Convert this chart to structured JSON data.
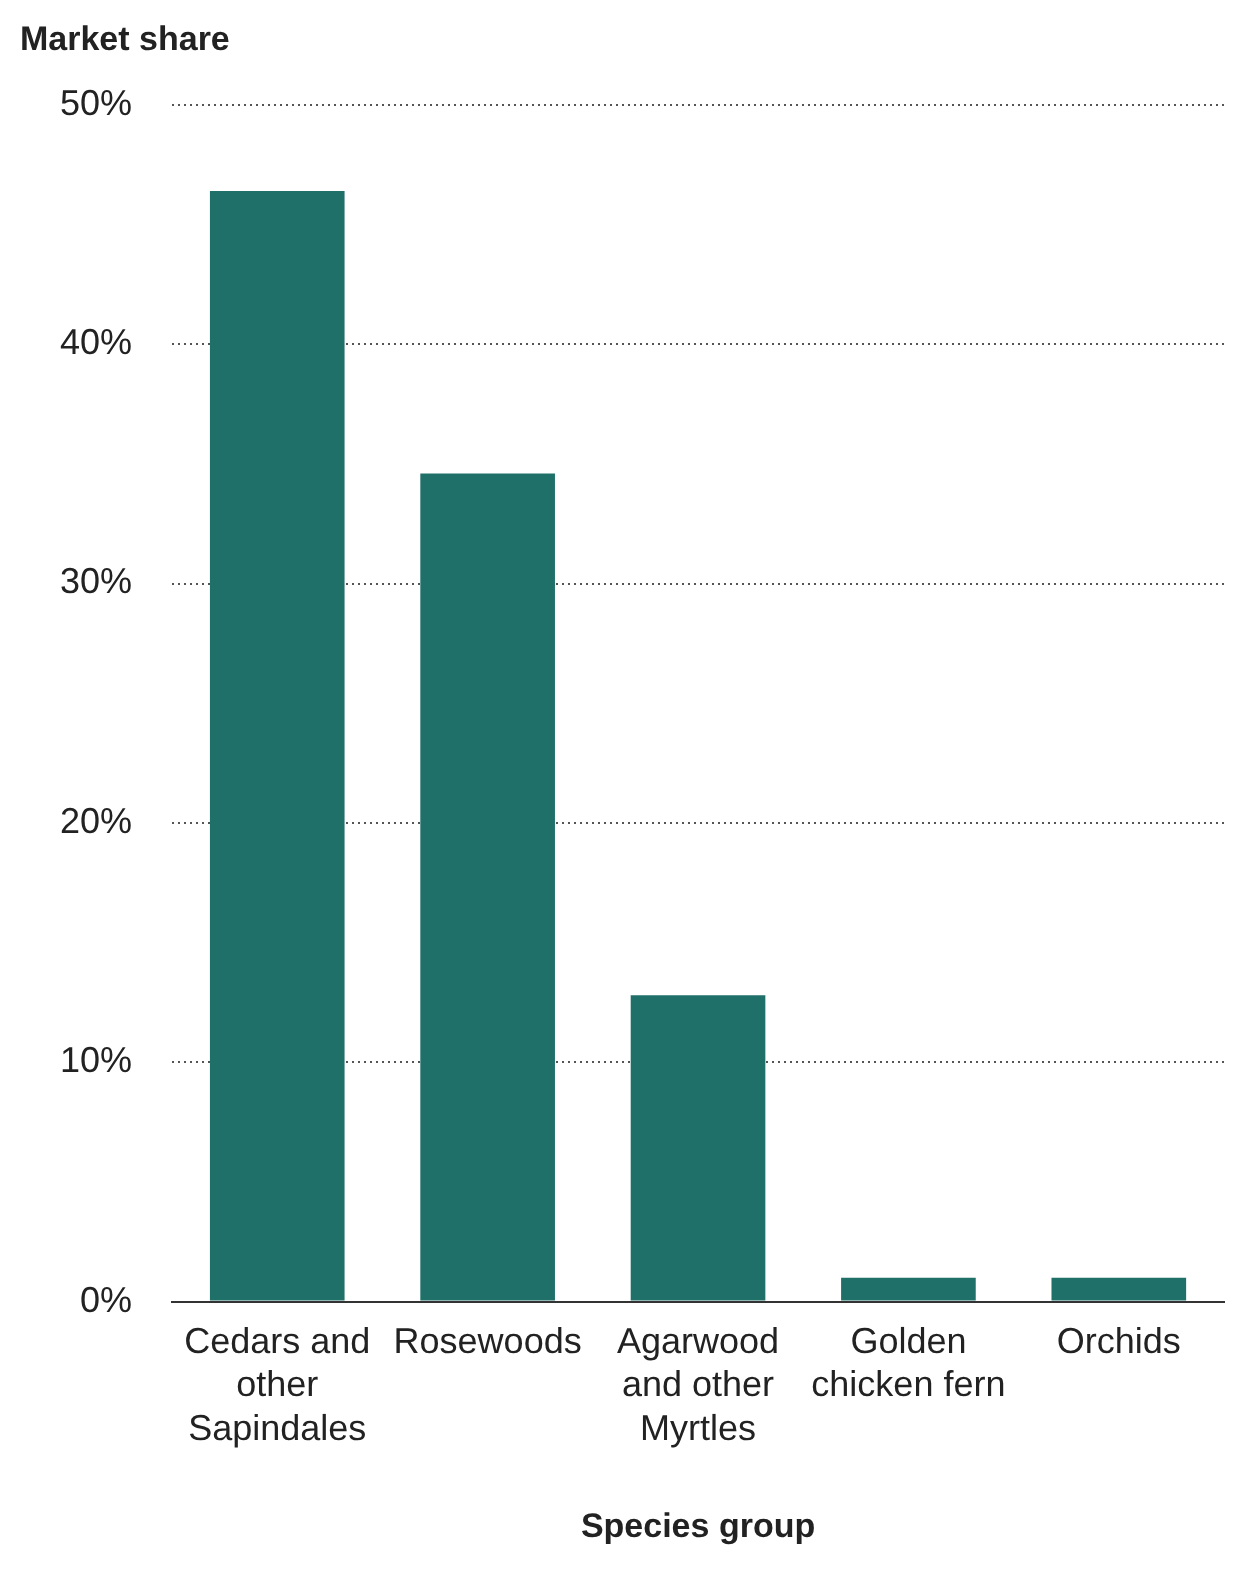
{
  "chart_data": {
    "type": "bar",
    "ylabel": "Market share",
    "xlabel": "Species group",
    "categories": [
      "Cedars and other Sapindales",
      "Rosewoods",
      "Agarwood and other Myrtles",
      "Golden chicken fern",
      "Orchids"
    ],
    "values": [
      46.4,
      34.6,
      12.8,
      1.0,
      1.0
    ],
    "color": "#20706a",
    "ylim": [
      0,
      50
    ],
    "yticks": [
      {
        "value": 0,
        "label": "0%"
      },
      {
        "value": 10,
        "label": "10%"
      },
      {
        "value": 20,
        "label": "20%"
      },
      {
        "value": 30,
        "label": "30%"
      },
      {
        "value": 40,
        "label": "40%"
      },
      {
        "value": 50,
        "label": "50%"
      }
    ],
    "grid": "y",
    "legend": false
  }
}
